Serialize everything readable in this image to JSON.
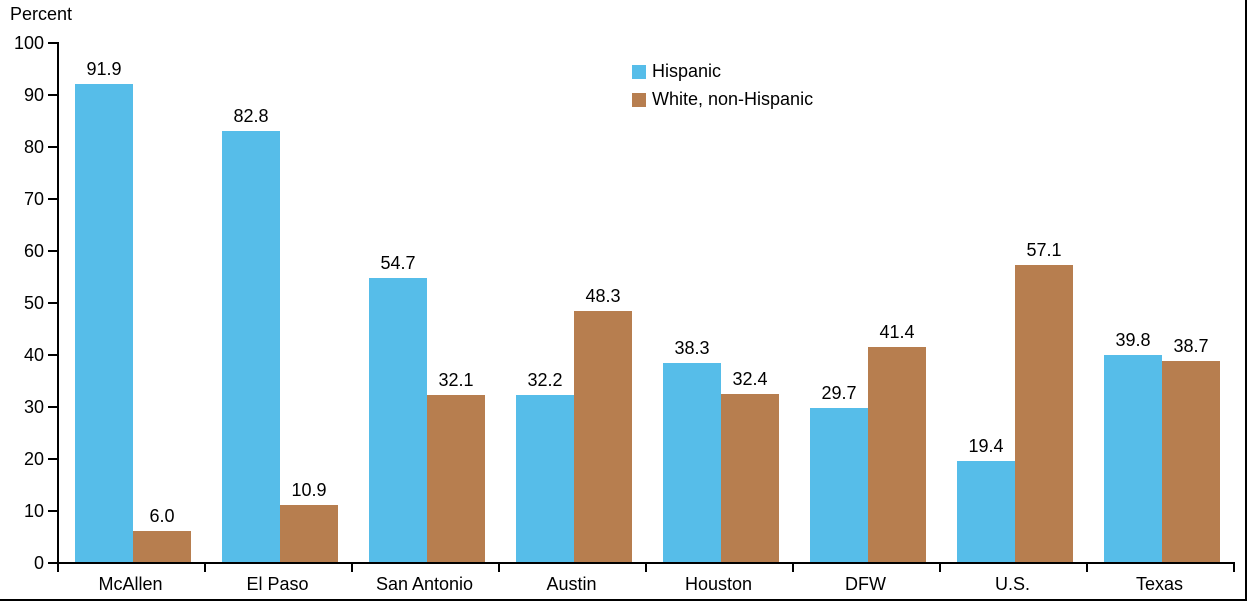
{
  "chart_data": {
    "type": "bar",
    "title": "",
    "ylabel": "Percent",
    "xlabel": "",
    "categories": [
      "McAllen",
      "El Paso",
      "San Antonio",
      "Austin",
      "Houston",
      "DFW",
      "U.S.",
      "Texas"
    ],
    "series": [
      {
        "name": "Hispanic",
        "color": "#56BDE9",
        "values": [
          91.9,
          82.8,
          54.7,
          32.2,
          38.3,
          29.7,
          19.4,
          39.8
        ]
      },
      {
        "name": "White, non-Hispanic",
        "color": "#B77E4F",
        "values": [
          6.0,
          10.9,
          32.1,
          48.3,
          32.4,
          41.4,
          57.1,
          38.7
        ]
      }
    ],
    "ylim": [
      0,
      100
    ],
    "yticks": [
      0,
      10,
      20,
      30,
      40,
      50,
      60,
      70,
      80,
      90,
      100
    ],
    "grid": false,
    "legend_position": "top-center",
    "value_labels": true,
    "value_label_decimals": 1,
    "axis_color": "#000000",
    "text_color": "#000000",
    "background_color": "#ffffff"
  }
}
